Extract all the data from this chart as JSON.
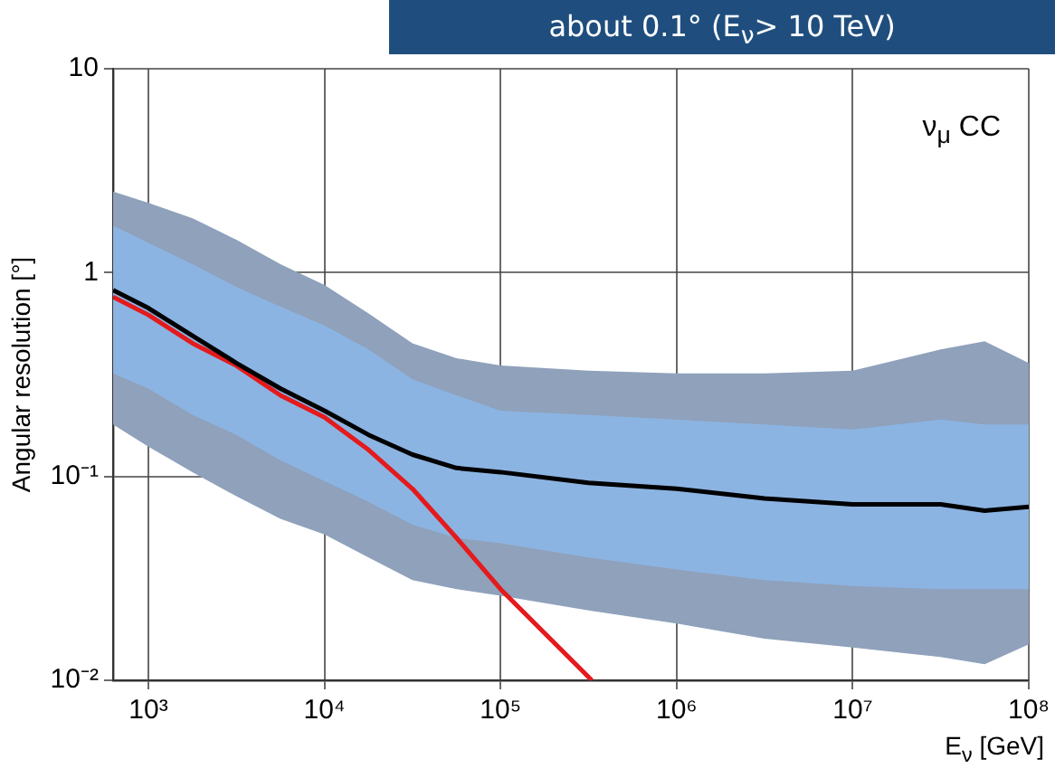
{
  "chart_data": {
    "type": "line",
    "xlabel": "E$_{ν}$ [GeV]",
    "ylabel": "Angular resolution [°]",
    "annotations": [
      "about 0.1° (E$_{ν}$> 10 TeV)",
      "ν$_{μ}$ CC"
    ],
    "log": "xy",
    "grid": true,
    "marker": "none",
    "line_style": "solid",
    "legend": false,
    "xlim": [
      630,
      100000000
    ],
    "ylim": [
      0.01,
      10
    ],
    "xticks": [
      {
        "value": 1000,
        "label": "10³"
      },
      {
        "value": 10000,
        "label": "10⁴"
      },
      {
        "value": 100000,
        "label": "10⁵"
      },
      {
        "value": 1000000,
        "label": "10⁶"
      },
      {
        "value": 10000000,
        "label": "10⁷"
      },
      {
        "value": 100000000,
        "label": "10⁸"
      }
    ],
    "yticks": [
      {
        "value": 0.01,
        "label": "10⁻²"
      },
      {
        "value": 0.1,
        "label": "10⁻¹"
      },
      1,
      10
    ],
    "x": [
      630,
      1000,
      1780,
      3160,
      5620,
      10000,
      17800,
      31600,
      56200,
      100000,
      316000,
      1000000,
      3160000,
      10000000,
      31600000,
      56200000,
      100000000
    ],
    "series": [
      {
        "color": "#8fa1bb",
        "values": [
          null,
          null,
          null,
          null,
          null,
          null,
          null,
          null,
          null,
          null,
          null,
          null,
          null,
          null,
          null,
          null,
          null
        ],
        "upper": [
          2.5,
          2.2,
          1.85,
          1.45,
          1.1,
          0.87,
          0.63,
          0.45,
          0.38,
          0.35,
          0.33,
          0.32,
          0.32,
          0.33,
          0.42,
          0.46,
          0.36
        ],
        "lower": [
          0.18,
          0.14,
          0.105,
          0.08,
          0.062,
          0.052,
          0.04,
          0.031,
          0.028,
          0.026,
          0.022,
          0.019,
          0.016,
          0.0145,
          0.013,
          0.012,
          0.015
        ]
      },
      {
        "color": "#8cb4e2",
        "values": [
          null,
          null,
          null,
          null,
          null,
          null,
          null,
          null,
          null,
          null,
          null,
          null,
          null,
          null,
          null,
          null,
          null
        ],
        "upper": [
          1.7,
          1.4,
          1.1,
          0.85,
          0.68,
          0.55,
          0.42,
          0.3,
          0.25,
          0.21,
          0.2,
          0.19,
          0.18,
          0.17,
          0.19,
          0.18,
          0.18
        ],
        "lower": [
          0.32,
          0.27,
          0.2,
          0.16,
          0.12,
          0.095,
          0.075,
          0.058,
          0.05,
          0.047,
          0.04,
          0.035,
          0.031,
          0.029,
          0.028,
          0.028,
          0.028
        ]
      },
      {
        "color": "#000000",
        "values": [
          0.82,
          0.67,
          0.49,
          0.36,
          0.27,
          0.21,
          0.16,
          0.128,
          0.11,
          0.105,
          0.093,
          0.087,
          0.078,
          0.073,
          0.073,
          0.068,
          0.071
        ]
      },
      {
        "color": "#e41a1c",
        "x": [
          630,
          1000,
          1780,
          3160,
          5620,
          10000,
          17800,
          31600,
          56200,
          100000,
          330000
        ],
        "values": [
          0.76,
          0.62,
          0.45,
          0.35,
          0.25,
          0.195,
          0.135,
          0.087,
          0.05,
          0.028,
          0.01
        ]
      }
    ]
  }
}
